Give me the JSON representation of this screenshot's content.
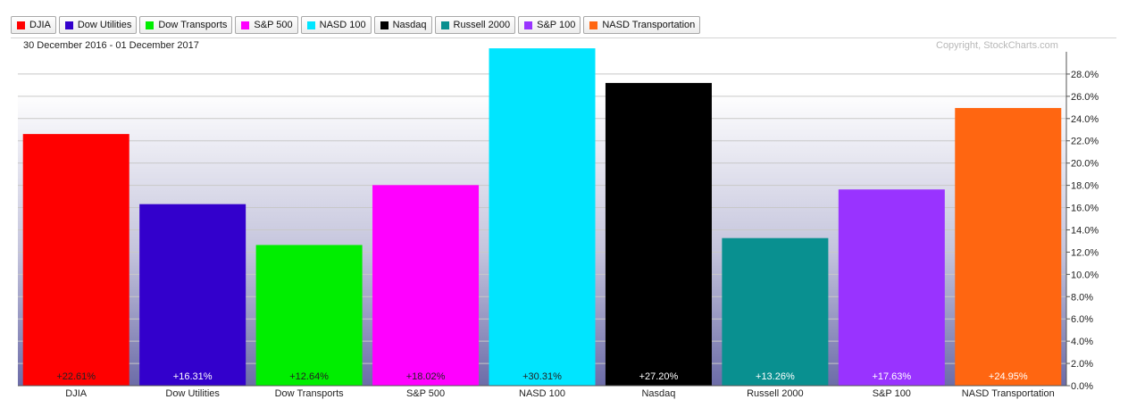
{
  "legend": [
    {
      "label": "DJIA",
      "color": "#ff0000"
    },
    {
      "label": "Dow Utilities",
      "color": "#3300cc"
    },
    {
      "label": "Dow Transports",
      "color": "#00ee00"
    },
    {
      "label": "S&P 500",
      "color": "#ff00ff"
    },
    {
      "label": "NASD 100",
      "color": "#00e5ff"
    },
    {
      "label": "Nasdaq",
      "color": "#000000"
    },
    {
      "label": "Russell 2000",
      "color": "#099090"
    },
    {
      "label": "S&P 100",
      "color": "#9933ff"
    },
    {
      "label": "NASD Transportation",
      "color": "#ff6611"
    }
  ],
  "date_range": "30 December 2016 - 01 December 2017",
  "copyright": "Copyright, StockCharts.com",
  "chart_data": {
    "type": "bar",
    "title": "",
    "xlabel": "",
    "ylabel": "",
    "categories": [
      "DJIA",
      "Dow Utilities",
      "Dow Transports",
      "S&P 500",
      "NASD 100",
      "Nasdaq",
      "Russell 2000",
      "S&P 100",
      "NASD Transportation"
    ],
    "values": [
      22.61,
      16.31,
      12.64,
      18.02,
      30.31,
      27.2,
      13.26,
      17.63,
      24.95
    ],
    "value_labels": [
      "+22.61%",
      "+16.31%",
      "+12.64%",
      "+18.02%",
      "+30.31%",
      "+27.20%",
      "+13.26%",
      "+17.63%",
      "+24.95%"
    ],
    "colors": [
      "#ff0000",
      "#3300cc",
      "#00ee00",
      "#ff00ff",
      "#00e5ff",
      "#000000",
      "#099090",
      "#9933ff",
      "#ff6611"
    ],
    "label_colors": [
      "#222222",
      "#ffffff",
      "#222222",
      "#222222",
      "#222222",
      "#ffffff",
      "#ffffff",
      "#ffffff",
      "#ffffff"
    ],
    "ylim": [
      0,
      30
    ],
    "yticks": [
      0,
      2,
      4,
      6,
      8,
      10,
      12,
      14,
      16,
      18,
      20,
      22,
      24,
      26,
      28
    ],
    "ytick_labels": [
      "0.0%",
      "2.0%",
      "4.0%",
      "6.0%",
      "8.0%",
      "10.0%",
      "12.0%",
      "14.0%",
      "16.0%",
      "18.0%",
      "20.0%",
      "22.0%",
      "24.0%",
      "26.0%",
      "28.0%"
    ],
    "grid": true,
    "y_axis_side": "right"
  }
}
